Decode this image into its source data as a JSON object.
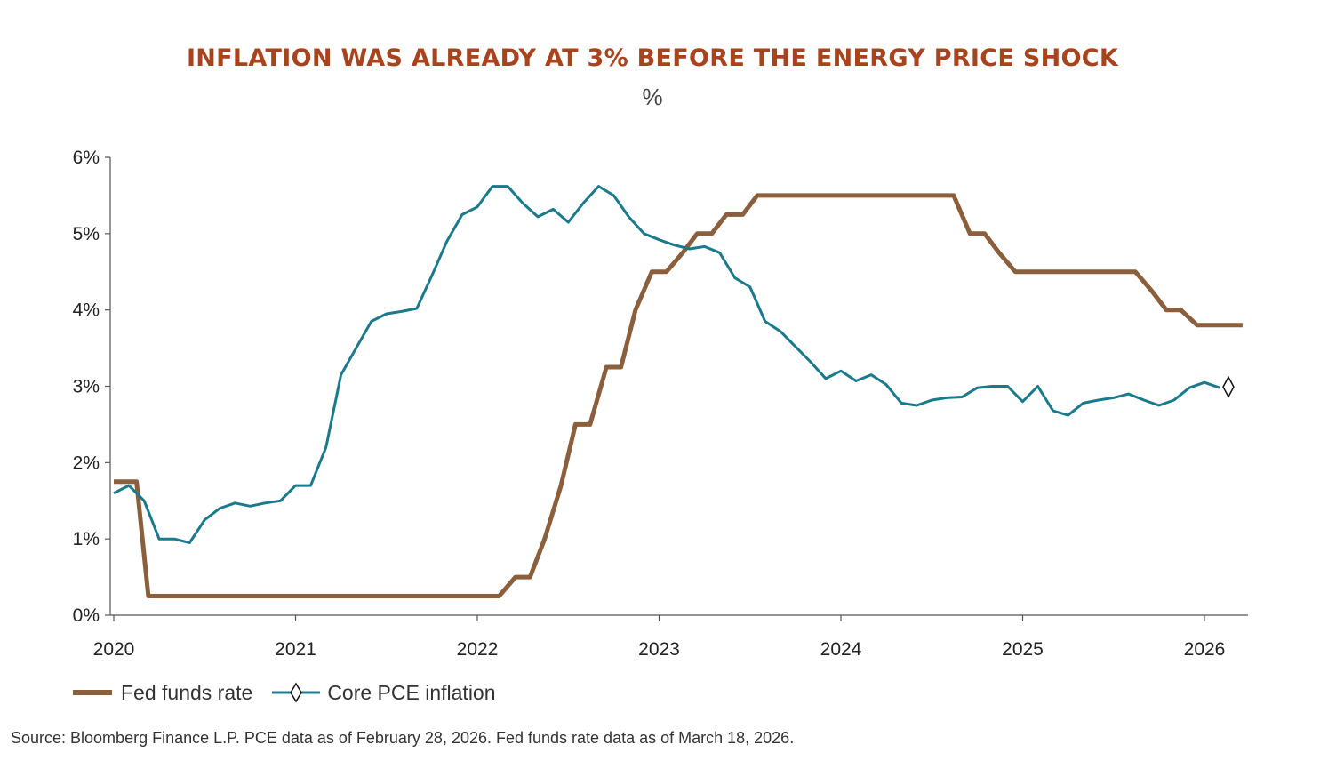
{
  "colors": {
    "title": "#A8431E",
    "fed": "#8B5E3C",
    "pce": "#1A7A8C",
    "axis": "#555555"
  },
  "chart_data": {
    "type": "line",
    "title": "INFLATION WAS ALREADY AT 3% BEFORE THE ENERGY PRICE SHOCK",
    "subtitle": "%",
    "xlabel": "",
    "ylabel": "",
    "xlim": [
      2020.0,
      2026.25
    ],
    "ylim": [
      0,
      6
    ],
    "x_ticks": [
      "2020",
      "2021",
      "2022",
      "2023",
      "2024",
      "2025",
      "2026"
    ],
    "y_ticks": [
      "0%",
      "1%",
      "2%",
      "3%",
      "4%",
      "5%",
      "6%"
    ],
    "grid": false,
    "legend_position": "bottom-left",
    "series": [
      {
        "name": "Fed funds rate",
        "x": [
          2020.0,
          2020.125,
          2020.19,
          2022.12,
          2022.21,
          2022.29,
          2022.37,
          2022.46,
          2022.54,
          2022.62,
          2022.71,
          2022.79,
          2022.87,
          2022.96,
          2023.04,
          2023.13,
          2023.21,
          2023.29,
          2023.37,
          2023.46,
          2023.54,
          2024.62,
          2024.71,
          2024.79,
          2024.87,
          2024.96,
          2025.62,
          2025.71,
          2025.79,
          2025.87,
          2025.96,
          2026.21
        ],
        "y": [
          1.75,
          1.75,
          0.25,
          0.25,
          0.5,
          0.5,
          1.0,
          1.7,
          2.5,
          2.5,
          3.25,
          3.25,
          4.0,
          4.5,
          4.5,
          4.75,
          5.0,
          5.0,
          5.25,
          5.25,
          5.5,
          5.5,
          5.0,
          5.0,
          4.75,
          4.5,
          4.5,
          4.25,
          4.0,
          4.0,
          3.8,
          3.8
        ]
      },
      {
        "name": "Core PCE inflation",
        "marker_last": "diamond",
        "x": [
          2020.0,
          2020.083,
          2020.167,
          2020.25,
          2020.333,
          2020.417,
          2020.5,
          2020.583,
          2020.667,
          2020.75,
          2020.833,
          2020.917,
          2021.0,
          2021.083,
          2021.167,
          2021.25,
          2021.333,
          2021.417,
          2021.5,
          2021.583,
          2021.667,
          2021.75,
          2021.833,
          2021.917,
          2022.0,
          2022.083,
          2022.167,
          2022.25,
          2022.333,
          2022.417,
          2022.5,
          2022.583,
          2022.667,
          2022.75,
          2022.833,
          2022.917,
          2023.0,
          2023.083,
          2023.167,
          2023.25,
          2023.333,
          2023.417,
          2023.5,
          2023.583,
          2023.667,
          2023.75,
          2023.833,
          2023.917,
          2024.0,
          2024.083,
          2024.167,
          2024.25,
          2024.333,
          2024.417,
          2024.5,
          2024.583,
          2024.667,
          2024.75,
          2024.833,
          2024.917,
          2025.0,
          2025.083,
          2025.167,
          2025.25,
          2025.333,
          2025.417,
          2025.5,
          2025.583,
          2025.667,
          2025.75,
          2025.833,
          2025.917,
          2026.0,
          2026.083
        ],
        "y": [
          1.6,
          1.7,
          1.5,
          1.0,
          1.0,
          0.95,
          1.25,
          1.4,
          1.47,
          1.43,
          1.47,
          1.5,
          1.7,
          1.7,
          2.2,
          3.15,
          3.5,
          3.85,
          3.95,
          3.98,
          4.02,
          4.45,
          4.9,
          5.25,
          5.35,
          5.62,
          5.62,
          5.4,
          5.22,
          5.32,
          5.15,
          5.4,
          5.62,
          5.5,
          5.22,
          5.0,
          4.92,
          4.85,
          4.8,
          4.83,
          4.75,
          4.42,
          4.3,
          3.85,
          3.72,
          3.52,
          3.32,
          3.1,
          3.2,
          3.07,
          3.15,
          3.02,
          2.78,
          2.75,
          2.82,
          2.85,
          2.86,
          2.98,
          3.0,
          3.0,
          2.8,
          3.0,
          2.68,
          2.62,
          2.78,
          2.82,
          2.85,
          2.9,
          2.82,
          2.75,
          2.82,
          2.98,
          3.05,
          2.98
        ]
      }
    ]
  },
  "legend": {
    "fed_label": "Fed funds rate",
    "pce_label": "Core PCE inflation"
  },
  "source": "Source: Bloomberg Finance L.P. PCE data as of February 28, 2026. Fed funds rate data as of March 18, 2026."
}
